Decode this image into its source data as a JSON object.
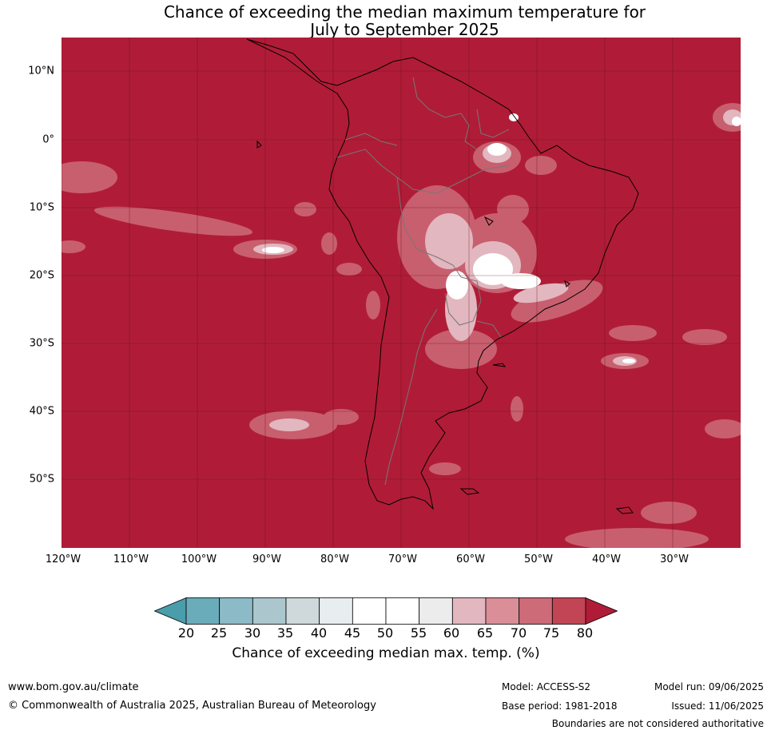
{
  "title": {
    "line1": "Chance of exceeding the median maximum temperature for",
    "line2": "July to September 2025"
  },
  "map": {
    "base_color": "#b01c37",
    "lat_labels": [
      "10°N",
      "0°",
      "10°S",
      "20°S",
      "30°S",
      "40°S",
      "50°S"
    ],
    "lon_labels": [
      "120°W",
      "110°W",
      "100°W",
      "90°W",
      "80°W",
      "70°W",
      "60°W",
      "50°W",
      "40°W",
      "30°W"
    ]
  },
  "colorbar": {
    "ticks": [
      "20",
      "25",
      "30",
      "35",
      "40",
      "45",
      "50",
      "55",
      "60",
      "65",
      "70",
      "75",
      "80"
    ],
    "colors": [
      "#4a9daa",
      "#6aacba",
      "#8cbac6",
      "#abc7cd",
      "#cfd9dc",
      "#e8eef0",
      "#ffffff",
      "#ffffff",
      "#ececec",
      "#e2b7bf",
      "#d98e98",
      "#cd6b78",
      "#c14554",
      "#b01c37"
    ],
    "label": "Chance of exceeding median max. temp. (%)"
  },
  "footer": {
    "url": "www.bom.gov.au/climate",
    "copyright": "© Commonwealth of Australia 2025, Australian Bureau of Meteorology",
    "model": "Model: ACCESS-S2",
    "base_period": "Base period: 1981-2018",
    "model_run": "Model run: 09/06/2025",
    "issued": "Issued: 11/06/2025",
    "disclaimer": "Boundaries are not considered authoritative"
  }
}
